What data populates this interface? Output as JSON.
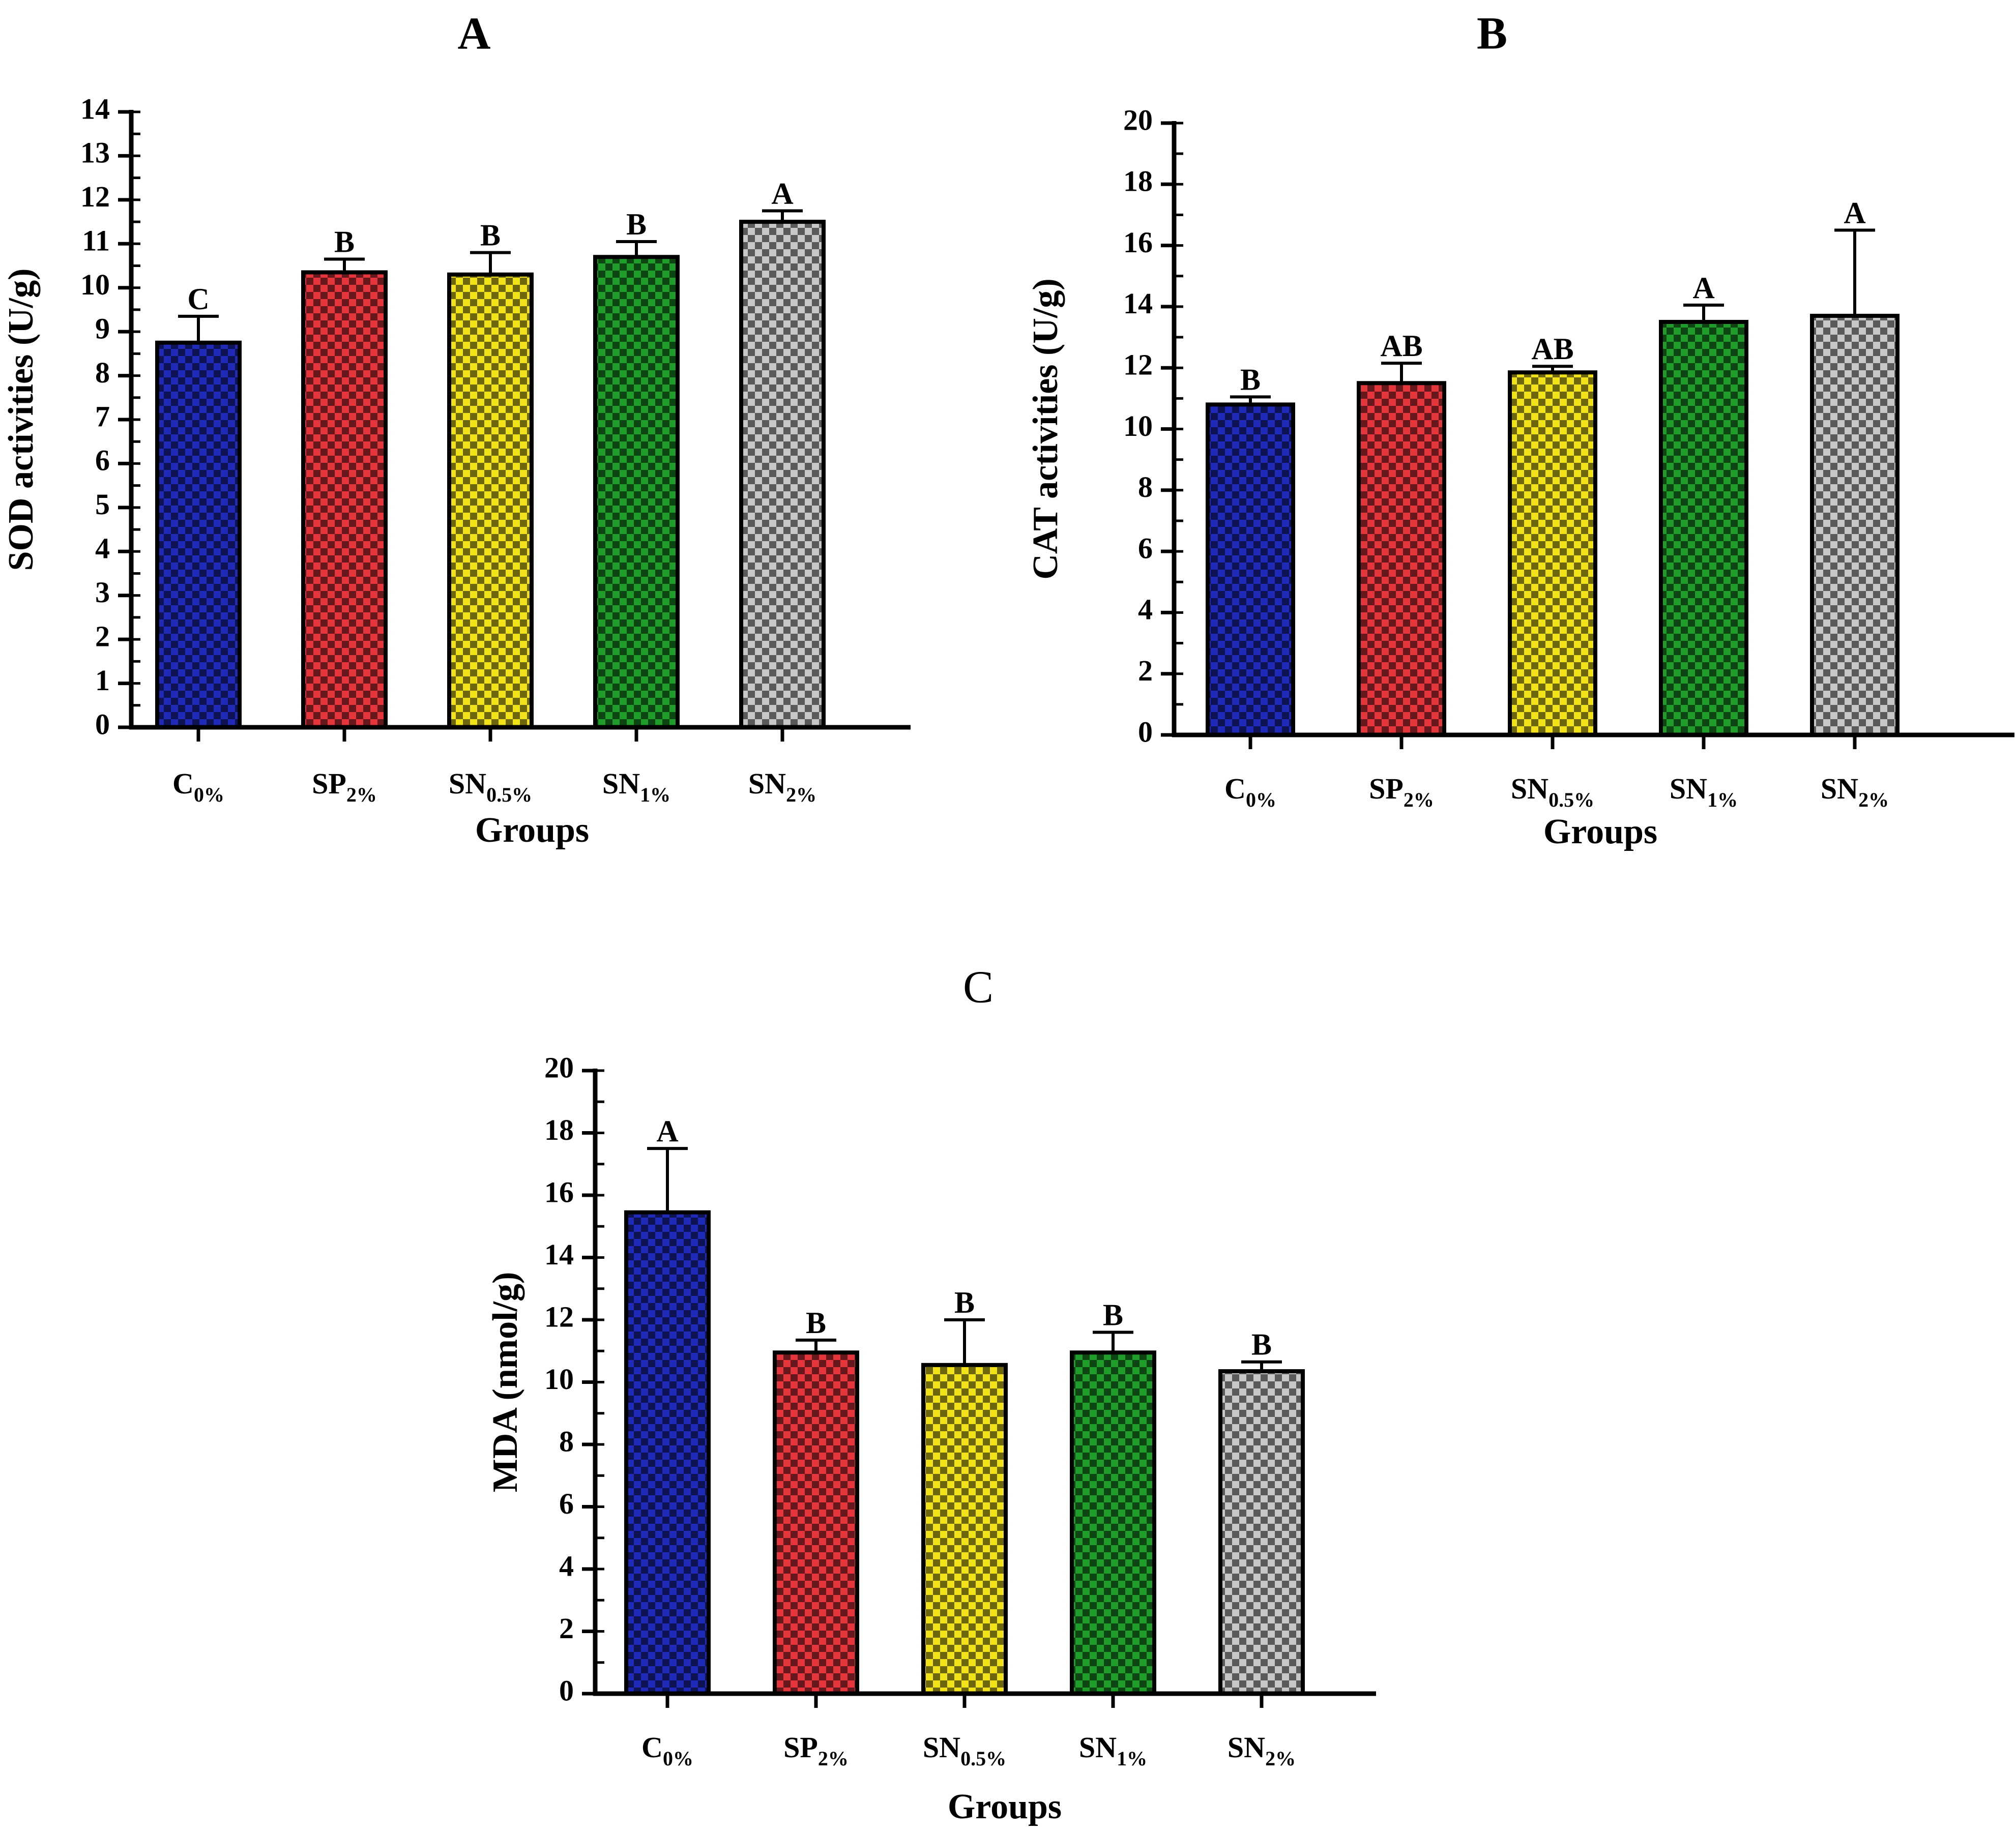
{
  "chart_data": [
    {
      "type": "bar",
      "panel": "A",
      "title": "A",
      "title_bold": true,
      "xlabel": "Groups",
      "ylabel": "SOD activities (U/g)",
      "ylim": [
        0,
        14
      ],
      "yticks": [
        0,
        1,
        2,
        3,
        4,
        5,
        6,
        7,
        8,
        9,
        10,
        11,
        12,
        13,
        14
      ],
      "categories": [
        {
          "base": "C",
          "sub": "0%"
        },
        {
          "base": "SP",
          "sub": "2%"
        },
        {
          "base": "SN",
          "sub": "0.5%"
        },
        {
          "base": "SN",
          "sub": "1%"
        },
        {
          "base": "SN",
          "sub": "2%"
        }
      ],
      "values": [
        8.75,
        10.35,
        10.3,
        10.7,
        11.5
      ],
      "errors": [
        0.6,
        0.3,
        0.5,
        0.35,
        0.25
      ],
      "significance": [
        "C",
        "B",
        "B",
        "B",
        "A"
      ]
    },
    {
      "type": "bar",
      "panel": "B",
      "title": "B",
      "title_bold": true,
      "xlabel": "Groups",
      "ylabel": "CAT activities (U/g)",
      "ylim": [
        0,
        20
      ],
      "yticks": [
        0,
        2,
        4,
        6,
        8,
        10,
        12,
        14,
        16,
        18,
        20
      ],
      "categories": [
        {
          "base": "C",
          "sub": "0%"
        },
        {
          "base": "SP",
          "sub": "2%"
        },
        {
          "base": "SN",
          "sub": "0.5%"
        },
        {
          "base": "SN",
          "sub": "1%"
        },
        {
          "base": "SN",
          "sub": "2%"
        }
      ],
      "values": [
        10.8,
        11.5,
        11.85,
        13.5,
        13.7
      ],
      "errors": [
        0.25,
        0.65,
        0.2,
        0.55,
        2.8
      ],
      "significance": [
        "B",
        "AB",
        "AB",
        "A",
        "A"
      ]
    },
    {
      "type": "bar",
      "panel": "C",
      "title": "C",
      "title_bold": false,
      "xlabel": "Groups",
      "ylabel": "MDA (nmol/g)",
      "ylim": [
        0,
        20
      ],
      "yticks": [
        0,
        2,
        4,
        6,
        8,
        10,
        12,
        14,
        16,
        18,
        20
      ],
      "categories": [
        {
          "base": "C",
          "sub": "0%"
        },
        {
          "base": "SP",
          "sub": "2%"
        },
        {
          "base": "SN",
          "sub": "0.5%"
        },
        {
          "base": "SN",
          "sub": "1%"
        },
        {
          "base": "SN",
          "sub": "2%"
        }
      ],
      "values": [
        15.45,
        10.95,
        10.55,
        10.95,
        10.35
      ],
      "errors": [
        2.05,
        0.4,
        1.45,
        0.65,
        0.3
      ],
      "significance": [
        "A",
        "B",
        "B",
        "B",
        "B"
      ]
    }
  ],
  "colors": {
    "bars": [
      "#1f2bb8",
      "#e5353d",
      "#f2e21a",
      "#1f9c2a",
      "#c7c7c7"
    ],
    "checker_light": "#ffffff",
    "checker_dark": "#000000",
    "axis": "#000000"
  }
}
